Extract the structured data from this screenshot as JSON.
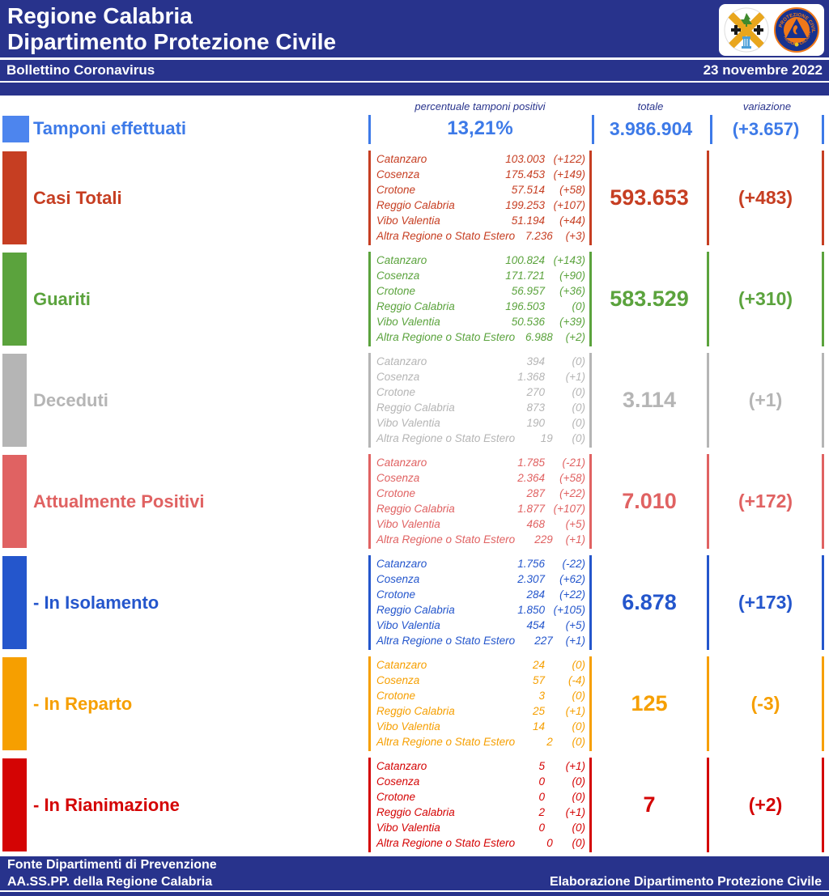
{
  "header": {
    "title_line1": "Regione Calabria",
    "title_line2": "Dipartimento Protezione Civile",
    "bulletin_title": "Bollettino Coronavirus",
    "date": "23 novembre 2022",
    "bg_color": "#28338c"
  },
  "column_headers": {
    "percent": "percentuale tamponi positivi",
    "total": "totale",
    "variation": "variazione"
  },
  "tamponi": {
    "label": "Tamponi effettuati",
    "percent": "13,21%",
    "total": "3.986.904",
    "variation": "(+3.657)",
    "color": "#3d7ae8",
    "square_color": "#4d85ee"
  },
  "sections": [
    {
      "id": "casi-totali",
      "label": "Casi Totali",
      "color": "#c63e22",
      "total": "593.653",
      "variation": "(+483)",
      "rows": [
        {
          "name": "Catanzaro",
          "value": "103.003",
          "delta": "(+122)"
        },
        {
          "name": "Cosenza",
          "value": "175.453",
          "delta": "(+149)"
        },
        {
          "name": "Crotone",
          "value": "57.514",
          "delta": "(+58)"
        },
        {
          "name": "Reggio Calabria",
          "value": "199.253",
          "delta": "(+107)"
        },
        {
          "name": "Vibo Valentia",
          "value": "51.194",
          "delta": "(+44)"
        },
        {
          "name": "Altra Regione o Stato Estero",
          "value": "7.236",
          "delta": "(+3)"
        }
      ]
    },
    {
      "id": "guariti",
      "label": "Guariti",
      "color": "#5ba33d",
      "total": "583.529",
      "variation": "(+310)",
      "rows": [
        {
          "name": "Catanzaro",
          "value": "100.824",
          "delta": "(+143)"
        },
        {
          "name": "Cosenza",
          "value": "171.721",
          "delta": "(+90)"
        },
        {
          "name": "Crotone",
          "value": "56.957",
          "delta": "(+36)"
        },
        {
          "name": "Reggio Calabria",
          "value": "196.503",
          "delta": "(0)"
        },
        {
          "name": "Vibo Valentia",
          "value": "50.536",
          "delta": "(+39)"
        },
        {
          "name": "Altra Regione o Stato Estero",
          "value": "6.988",
          "delta": "(+2)"
        }
      ]
    },
    {
      "id": "deceduti",
      "label": "Deceduti",
      "color": "#b5b5b5",
      "total": "3.114",
      "variation": "(+1)",
      "rows": [
        {
          "name": "Catanzaro",
          "value": "394",
          "delta": "(0)"
        },
        {
          "name": "Cosenza",
          "value": "1.368",
          "delta": "(+1)"
        },
        {
          "name": "Crotone",
          "value": "270",
          "delta": "(0)"
        },
        {
          "name": "Reggio Calabria",
          "value": "873",
          "delta": "(0)"
        },
        {
          "name": "Vibo Valentia",
          "value": "190",
          "delta": "(0)"
        },
        {
          "name": "Altra Regione o Stato Estero",
          "value": "19",
          "delta": "(0)"
        }
      ]
    },
    {
      "id": "attualmente-positivi",
      "label": "Attualmente Positivi",
      "color": "#e06262",
      "total": "7.010",
      "variation": "(+172)",
      "rows": [
        {
          "name": "Catanzaro",
          "value": "1.785",
          "delta": "(-21)"
        },
        {
          "name": "Cosenza",
          "value": "2.364",
          "delta": "(+58)"
        },
        {
          "name": "Crotone",
          "value": "287",
          "delta": "(+22)"
        },
        {
          "name": "Reggio Calabria",
          "value": "1.877",
          "delta": "(+107)"
        },
        {
          "name": "Vibo Valentia",
          "value": "468",
          "delta": "(+5)"
        },
        {
          "name": "Altra Regione o Stato Estero",
          "value": "229",
          "delta": "(+1)"
        }
      ]
    },
    {
      "id": "in-isolamento",
      "label": "- In Isolamento",
      "color": "#2456cc",
      "total": "6.878",
      "variation": "(+173)",
      "rows": [
        {
          "name": "Catanzaro",
          "value": "1.756",
          "delta": "(-22)"
        },
        {
          "name": "Cosenza",
          "value": "2.307",
          "delta": "(+62)"
        },
        {
          "name": "Crotone",
          "value": "284",
          "delta": "(+22)"
        },
        {
          "name": "Reggio Calabria",
          "value": "1.850",
          "delta": "(+105)"
        },
        {
          "name": "Vibo Valentia",
          "value": "454",
          "delta": "(+5)"
        },
        {
          "name": "Altra Regione o Stato Estero",
          "value": "227",
          "delta": "(+1)"
        }
      ]
    },
    {
      "id": "in-reparto",
      "label": "- In Reparto",
      "color": "#f69f00",
      "total": "125",
      "variation": "(-3)",
      "rows": [
        {
          "name": "Catanzaro",
          "value": "24",
          "delta": "(0)"
        },
        {
          "name": "Cosenza",
          "value": "57",
          "delta": "(-4)"
        },
        {
          "name": "Crotone",
          "value": "3",
          "delta": "(0)"
        },
        {
          "name": "Reggio Calabria",
          "value": "25",
          "delta": "(+1)"
        },
        {
          "name": "Vibo Valentia",
          "value": "14",
          "delta": "(0)"
        },
        {
          "name": "Altra Regione o Stato Estero",
          "value": "2",
          "delta": "(0)"
        }
      ]
    },
    {
      "id": "in-rianimazione",
      "label": "- In Rianimazione",
      "color": "#d40404",
      "total": "7",
      "variation": "(+2)",
      "rows": [
        {
          "name": "Catanzaro",
          "value": "5",
          "delta": "(+1)"
        },
        {
          "name": "Cosenza",
          "value": "0",
          "delta": "(0)"
        },
        {
          "name": "Crotone",
          "value": "0",
          "delta": "(0)"
        },
        {
          "name": "Reggio Calabria",
          "value": "2",
          "delta": "(+1)"
        },
        {
          "name": "Vibo Valentia",
          "value": "0",
          "delta": "(0)"
        },
        {
          "name": "Altra Regione o Stato Estero",
          "value": "0",
          "delta": "(0)"
        }
      ]
    }
  ],
  "footer": {
    "line1": "Fonte Dipartimenti di Prevenzione",
    "line2_left": "AA.SS.PP.  della Regione Calabria",
    "line2_right": "Elaborazione Dipartimento Protezione Civile"
  }
}
